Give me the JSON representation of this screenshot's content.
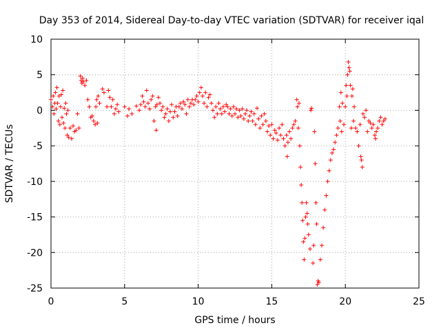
{
  "chart_data": {
    "type": "scatter",
    "title": "Day 353 of 2014, Sidereal Day-to-day VTEC variation (SDTVAR) for receiver iqal",
    "xlabel": "GPS time / hours",
    "ylabel": "SDTVAR / TECUs",
    "xlim": [
      0,
      25
    ],
    "ylim": [
      -25,
      10
    ],
    "grid": true,
    "marker": "+",
    "color": "#ff0000",
    "x_ticks": [
      "0",
      "5",
      "10",
      "15",
      "20",
      "25"
    ],
    "y_ticks": [
      "-25",
      "-20",
      "-15",
      "-10",
      "-5",
      "0",
      "5",
      "10"
    ],
    "series": [
      {
        "name": "SDTVAR",
        "points": [
          [
            0.0,
            1.5
          ],
          [
            0.1,
            0.5
          ],
          [
            0.15,
            2.0
          ],
          [
            0.2,
            -0.5
          ],
          [
            0.25,
            1.0
          ],
          [
            0.3,
            2.5
          ],
          [
            0.35,
            0.2
          ],
          [
            0.4,
            3.2
          ],
          [
            0.45,
            1.0
          ],
          [
            0.5,
            -1.5
          ],
          [
            0.55,
            2.0
          ],
          [
            0.6,
            -2.0
          ],
          [
            0.65,
            0.5
          ],
          [
            0.7,
            2.2
          ],
          [
            0.75,
            -1.0
          ],
          [
            0.8,
            2.8
          ],
          [
            0.85,
            -1.8
          ],
          [
            0.9,
            0.3
          ],
          [
            0.95,
            -2.5
          ],
          [
            1.0,
            1.0
          ],
          [
            1.05,
            -0.5
          ],
          [
            1.1,
            -3.5
          ],
          [
            1.15,
            0.0
          ],
          [
            1.2,
            -3.8
          ],
          [
            1.3,
            -2.5
          ],
          [
            1.4,
            -4.0
          ],
          [
            1.5,
            -2.2
          ],
          [
            1.6,
            -3.0
          ],
          [
            1.7,
            -2.8
          ],
          [
            1.8,
            -0.5
          ],
          [
            1.9,
            -2.5
          ],
          [
            2.0,
            4.8
          ],
          [
            2.05,
            4.2
          ],
          [
            2.1,
            3.8
          ],
          [
            2.15,
            4.5
          ],
          [
            2.2,
            4.0
          ],
          [
            2.3,
            3.5
          ],
          [
            2.4,
            4.2
          ],
          [
            2.5,
            1.5
          ],
          [
            2.6,
            0.5
          ],
          [
            2.7,
            -1.0
          ],
          [
            2.8,
            -0.8
          ],
          [
            2.9,
            -1.5
          ],
          [
            3.0,
            -2.0
          ],
          [
            3.05,
            0.5
          ],
          [
            3.1,
            1.5
          ],
          [
            3.15,
            -1.8
          ],
          [
            3.2,
            2.0
          ],
          [
            3.3,
            1.0
          ],
          [
            3.5,
            3.0
          ],
          [
            3.6,
            2.5
          ],
          [
            3.8,
            0.5
          ],
          [
            3.9,
            2.8
          ],
          [
            4.0,
            1.8
          ],
          [
            4.1,
            0.5
          ],
          [
            4.2,
            1.5
          ],
          [
            4.3,
            -0.5
          ],
          [
            4.4,
            0.2
          ],
          [
            4.5,
            0.8
          ],
          [
            4.6,
            -0.2
          ],
          [
            5.0,
            0.5
          ],
          [
            5.2,
            -0.8
          ],
          [
            5.3,
            0.2
          ],
          [
            5.5,
            -0.5
          ],
          [
            5.8,
            0.6
          ],
          [
            6.0,
            0.0
          ],
          [
            6.1,
            0.8
          ],
          [
            6.2,
            2.0
          ],
          [
            6.3,
            1.2
          ],
          [
            6.4,
            0.5
          ],
          [
            6.5,
            2.8
          ],
          [
            6.6,
            1.0
          ],
          [
            6.7,
            0.2
          ],
          [
            6.8,
            1.5
          ],
          [
            6.9,
            2.0
          ],
          [
            7.0,
            -1.5
          ],
          [
            7.1,
            0.5
          ],
          [
            7.15,
            -2.8
          ],
          [
            7.2,
            0.8
          ],
          [
            7.3,
            1.8
          ],
          [
            7.4,
            1.0
          ],
          [
            7.5,
            0.0
          ],
          [
            7.6,
            0.5
          ],
          [
            7.7,
            -1.0
          ],
          [
            7.8,
            -0.5
          ],
          [
            7.9,
            0.2
          ],
          [
            8.0,
            -1.5
          ],
          [
            8.1,
            -0.2
          ],
          [
            8.2,
            0.8
          ],
          [
            8.3,
            -1.0
          ],
          [
            8.4,
            -0.2
          ],
          [
            8.5,
            0.5
          ],
          [
            8.6,
            -0.8
          ],
          [
            8.7,
            0.5
          ],
          [
            8.8,
            1.0
          ],
          [
            8.9,
            0.2
          ],
          [
            9.0,
            1.2
          ],
          [
            9.1,
            0.8
          ],
          [
            9.2,
            -0.5
          ],
          [
            9.3,
            1.5
          ],
          [
            9.4,
            0.5
          ],
          [
            9.5,
            1.0
          ],
          [
            9.6,
            1.5
          ],
          [
            9.7,
            0.8
          ],
          [
            9.8,
            1.5
          ],
          [
            9.9,
            2.0
          ],
          [
            10.0,
            1.2
          ],
          [
            10.1,
            2.5
          ],
          [
            10.2,
            3.2
          ],
          [
            10.3,
            2.0
          ],
          [
            10.4,
            1.0
          ],
          [
            10.5,
            2.5
          ],
          [
            10.6,
            0.5
          ],
          [
            10.7,
            1.8
          ],
          [
            10.8,
            2.2
          ],
          [
            10.9,
            1.0
          ],
          [
            11.0,
            0.0
          ],
          [
            11.1,
            -1.0
          ],
          [
            11.2,
            0.5
          ],
          [
            11.3,
            -0.5
          ],
          [
            11.4,
            1.0
          ],
          [
            11.5,
            0.2
          ],
          [
            11.6,
            -0.5
          ],
          [
            11.7,
            0.5
          ],
          [
            11.8,
            -0.2
          ],
          [
            11.9,
            0.8
          ],
          [
            12.0,
            0.5
          ],
          [
            12.1,
            -0.5
          ],
          [
            12.2,
            0.2
          ],
          [
            12.3,
            -0.8
          ],
          [
            12.4,
            0.5
          ],
          [
            12.5,
            -0.5
          ],
          [
            12.6,
            0.2
          ],
          [
            12.7,
            -1.0
          ],
          [
            12.8,
            0.0
          ],
          [
            12.9,
            -0.8
          ],
          [
            13.0,
            0.2
          ],
          [
            13.1,
            -1.2
          ],
          [
            13.2,
            -0.5
          ],
          [
            13.3,
            0.0
          ],
          [
            13.4,
            -1.5
          ],
          [
            13.5,
            -0.8
          ],
          [
            13.6,
            -0.2
          ],
          [
            13.7,
            -1.5
          ],
          [
            13.8,
            -0.5
          ],
          [
            13.9,
            -2.0
          ],
          [
            14.0,
            0.3
          ],
          [
            14.1,
            -1.2
          ],
          [
            14.2,
            -2.5
          ],
          [
            14.3,
            -0.8
          ],
          [
            14.4,
            -2.0
          ],
          [
            14.5,
            -0.5
          ],
          [
            14.6,
            -1.5
          ],
          [
            14.7,
            -3.0
          ],
          [
            14.8,
            -2.2
          ],
          [
            14.9,
            -3.5
          ],
          [
            15.0,
            -2.0
          ],
          [
            15.1,
            -4.0
          ],
          [
            15.2,
            -2.8
          ],
          [
            15.3,
            -3.2
          ],
          [
            15.4,
            -4.2
          ],
          [
            15.5,
            -2.5
          ],
          [
            15.6,
            -3.5
          ],
          [
            15.7,
            -2.0
          ],
          [
            15.8,
            -4.0
          ],
          [
            15.9,
            -5.0
          ],
          [
            16.0,
            -3.5
          ],
          [
            16.05,
            -6.5
          ],
          [
            16.1,
            -4.5
          ],
          [
            16.2,
            -3.0
          ],
          [
            16.3,
            -4.0
          ],
          [
            16.4,
            -2.5
          ],
          [
            16.5,
            -2.0
          ],
          [
            16.6,
            -1.5
          ],
          [
            16.7,
            1.5
          ],
          [
            16.75,
            0.5
          ],
          [
            16.8,
            -2.5
          ],
          [
            16.85,
            1.0
          ],
          [
            16.9,
            -5.0
          ],
          [
            16.95,
            -8.0
          ],
          [
            17.0,
            -10.5
          ],
          [
            17.05,
            -13.0
          ],
          [
            17.1,
            -15.5
          ],
          [
            17.15,
            -18.5
          ],
          [
            17.2,
            -21.0
          ],
          [
            17.25,
            -18.0
          ],
          [
            17.3,
            -15.0
          ],
          [
            17.35,
            -13.0
          ],
          [
            17.4,
            -14.5
          ],
          [
            17.45,
            -16.0
          ],
          [
            17.5,
            -17.5
          ],
          [
            17.6,
            -19.5
          ],
          [
            17.65,
            0.0
          ],
          [
            17.7,
            0.3
          ],
          [
            17.8,
            -21.5
          ],
          [
            17.85,
            -19.0
          ],
          [
            17.9,
            -3.0
          ],
          [
            17.95,
            -7.5
          ],
          [
            18.0,
            -13.0
          ],
          [
            18.05,
            -16.0
          ],
          [
            18.1,
            -24.5
          ],
          [
            18.15,
            -24.0
          ],
          [
            18.2,
            -24.2
          ],
          [
            18.3,
            -21.0
          ],
          [
            18.4,
            -19.0
          ],
          [
            18.5,
            -16.5
          ],
          [
            18.6,
            -14.0
          ],
          [
            18.7,
            -12.0
          ],
          [
            18.8,
            -10.0
          ],
          [
            18.9,
            -8.5
          ],
          [
            19.0,
            -7.0
          ],
          [
            19.1,
            -6.0
          ],
          [
            19.2,
            -5.5
          ],
          [
            19.3,
            -4.5
          ],
          [
            19.4,
            -3.5
          ],
          [
            19.5,
            -2.5
          ],
          [
            19.6,
            0.5
          ],
          [
            19.65,
            -1.5
          ],
          [
            19.7,
            2.5
          ],
          [
            19.75,
            -3.0
          ],
          [
            19.8,
            1.0
          ],
          [
            19.9,
            -2.0
          ],
          [
            20.0,
            0.5
          ],
          [
            20.05,
            3.5
          ],
          [
            20.1,
            2.0
          ],
          [
            20.15,
            5.0
          ],
          [
            20.2,
            6.8
          ],
          [
            20.25,
            6.0
          ],
          [
            20.3,
            5.5
          ],
          [
            20.35,
            3.5
          ],
          [
            20.4,
            -2.5
          ],
          [
            20.45,
            2.0
          ],
          [
            20.5,
            3.0
          ],
          [
            20.55,
            -1.5
          ],
          [
            20.6,
            0.5
          ],
          [
            20.7,
            -2.5
          ],
          [
            20.8,
            -3.0
          ],
          [
            20.9,
            -5.0
          ],
          [
            21.0,
            -2.0
          ],
          [
            21.05,
            -6.5
          ],
          [
            21.1,
            -7.0
          ],
          [
            21.15,
            -8.0
          ],
          [
            21.2,
            -0.5
          ],
          [
            21.3,
            -1.0
          ],
          [
            21.4,
            0.0
          ],
          [
            21.5,
            -3.0
          ],
          [
            21.6,
            -1.5
          ],
          [
            21.7,
            -1.8
          ],
          [
            21.8,
            -2.5
          ],
          [
            21.9,
            -2.0
          ],
          [
            22.0,
            -3.5
          ],
          [
            22.05,
            -4.0
          ],
          [
            22.1,
            -3.0
          ],
          [
            22.2,
            -2.5
          ],
          [
            22.3,
            -1.5
          ],
          [
            22.4,
            -1.0
          ],
          [
            22.5,
            -2.0
          ],
          [
            22.6,
            -1.5
          ],
          [
            22.7,
            -1.2
          ]
        ]
      }
    ]
  }
}
